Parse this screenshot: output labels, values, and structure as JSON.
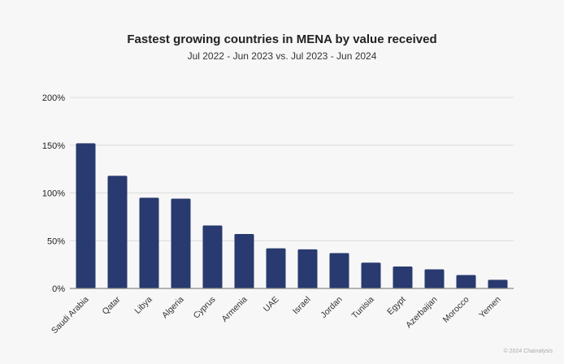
{
  "chart_data": {
    "type": "bar",
    "title": "Fastest growing countries in MENA by value received",
    "subtitle": "Jul 2022 - Jun 2023 vs. Jul 2023 - Jun 2024",
    "xlabel": "",
    "ylabel": "",
    "categories": [
      "Saudi Arabia",
      "Qatar",
      "Libya",
      "Algeria",
      "Cyprus",
      "Armenia",
      "UAE",
      "Israel",
      "Jordan",
      "Tunisia",
      "Egypt",
      "Azerbaijan",
      "Morocco",
      "Yemen"
    ],
    "values": [
      152,
      118,
      95,
      94,
      66,
      57,
      42,
      41,
      37,
      27,
      23,
      20,
      14,
      9
    ],
    "unit": "%",
    "ylim": [
      0,
      200
    ],
    "yticks": [
      "0%",
      "50%",
      "100%",
      "150%",
      "200%"
    ],
    "grid": true,
    "bar_color": "#283a6f"
  },
  "footer": {
    "credit": "© 2024 Chainalysis"
  }
}
